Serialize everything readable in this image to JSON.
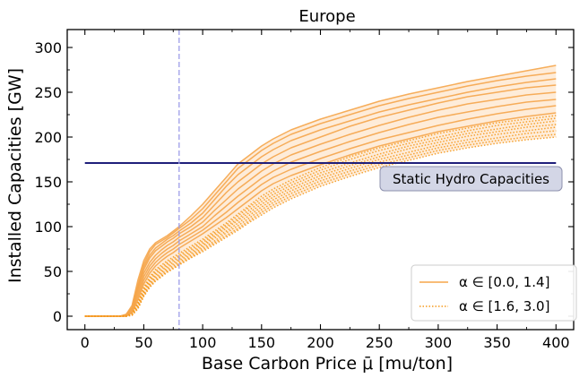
{
  "chart_data": {
    "type": "line",
    "title": "Europe",
    "xlabel": "Base Carbon Price μ̄ [mu/ton]",
    "ylabel": "Installed Capacities [GW]",
    "xlim": [
      -15,
      415
    ],
    "ylim": [
      -15,
      320
    ],
    "xticks": [
      0,
      50,
      100,
      150,
      200,
      250,
      300,
      350,
      400
    ],
    "yticks": [
      0,
      50,
      100,
      150,
      200,
      250,
      300
    ],
    "xtick_labels": [
      "0",
      "50",
      "100",
      "150",
      "200",
      "250",
      "300",
      "350",
      "400"
    ],
    "ytick_labels": [
      "0",
      "50",
      "100",
      "150",
      "200",
      "250",
      "300"
    ],
    "grid": false,
    "legend_position": "bottom-right",
    "colors": {
      "series": "#f5a54a",
      "dotted_series": "#f59a1e",
      "band_fill": "#fde6cc",
      "static_line": "#1f1f7a",
      "vline": "#9c9ce8",
      "annotation_bg": "#d3d6e6",
      "annotation_border": "#8d90ad"
    },
    "legend": [
      {
        "label": "α ∈ [0.0, 1.4]",
        "style": "solid"
      },
      {
        "label": "α ∈ [1.6, 3.0]",
        "style": "dotted"
      }
    ],
    "vertical_line": {
      "x": 80
    },
    "static_hydro": {
      "y": 171,
      "x_range": [
        0,
        400
      ],
      "label": "Static Hydro Capacities"
    },
    "x": [
      0,
      10,
      20,
      30,
      35,
      40,
      45,
      50,
      55,
      60,
      65,
      70,
      75,
      80,
      90,
      100,
      110,
      120,
      130,
      140,
      150,
      160,
      175,
      200,
      225,
      250,
      275,
      300,
      325,
      350,
      375,
      400
    ],
    "series_solid": [
      {
        "values": [
          0,
          0,
          0,
          0,
          2,
          12,
          40,
          62,
          75,
          82,
          86,
          90,
          95,
          100,
          112,
          125,
          140,
          155,
          170,
          180,
          190,
          198,
          208,
          220,
          230,
          240,
          248,
          255,
          262,
          268,
          274,
          280
        ]
      },
      {
        "values": [
          0,
          0,
          0,
          0,
          2,
          10,
          35,
          58,
          72,
          80,
          84,
          88,
          93,
          98,
          108,
          120,
          135,
          150,
          165,
          175,
          185,
          193,
          203,
          215,
          225,
          235,
          243,
          250,
          257,
          263,
          268,
          272
        ]
      },
      {
        "values": [
          0,
          0,
          0,
          0,
          1,
          9,
          32,
          55,
          68,
          76,
          81,
          86,
          90,
          95,
          104,
          115,
          130,
          145,
          158,
          168,
          178,
          186,
          196,
          208,
          218,
          228,
          236,
          243,
          250,
          256,
          261,
          265
        ]
      },
      {
        "values": [
          0,
          0,
          0,
          0,
          1,
          8,
          30,
          52,
          65,
          73,
          78,
          83,
          87,
          92,
          100,
          110,
          124,
          138,
          150,
          160,
          170,
          178,
          188,
          200,
          212,
          222,
          230,
          238,
          245,
          250,
          255,
          258
        ]
      },
      {
        "values": [
          0,
          0,
          0,
          0,
          1,
          7,
          27,
          48,
          60,
          68,
          74,
          79,
          83,
          88,
          96,
          105,
          118,
          130,
          142,
          152,
          162,
          170,
          180,
          192,
          203,
          213,
          222,
          230,
          237,
          242,
          247,
          250
        ]
      },
      {
        "values": [
          0,
          0,
          0,
          0,
          1,
          6,
          24,
          44,
          56,
          64,
          70,
          75,
          79,
          84,
          92,
          100,
          112,
          123,
          134,
          144,
          154,
          162,
          172,
          184,
          195,
          205,
          214,
          222,
          228,
          234,
          239,
          242
        ]
      },
      {
        "values": [
          0,
          0,
          0,
          0,
          0,
          5,
          21,
          40,
          52,
          60,
          66,
          71,
          75,
          80,
          88,
          96,
          106,
          116,
          127,
          137,
          147,
          155,
          164,
          176,
          187,
          197,
          205,
          213,
          220,
          226,
          231,
          235
        ]
      },
      {
        "values": [
          0,
          0,
          0,
          0,
          0,
          4,
          18,
          36,
          48,
          56,
          62,
          67,
          71,
          76,
          84,
          92,
          101,
          110,
          120,
          130,
          140,
          148,
          157,
          169,
          180,
          190,
          198,
          206,
          212,
          218,
          223,
          227
        ]
      }
    ],
    "series_dotted": [
      {
        "values": [
          0,
          0,
          0,
          0,
          0,
          3,
          15,
          32,
          44,
          52,
          57,
          62,
          66,
          70,
          78,
          86,
          95,
          104,
          114,
          124,
          134,
          142,
          152,
          166,
          178,
          188,
          196,
          204,
          210,
          216,
          220,
          224
        ]
      },
      {
        "values": [
          0,
          0,
          0,
          0,
          0,
          3,
          14,
          30,
          42,
          50,
          55,
          60,
          64,
          68,
          76,
          84,
          93,
          102,
          112,
          122,
          131,
          139,
          149,
          163,
          175,
          185,
          193,
          200,
          207,
          213,
          217,
          221
        ]
      },
      {
        "values": [
          0,
          0,
          0,
          0,
          0,
          2,
          13,
          29,
          40,
          48,
          53,
          58,
          62,
          66,
          74,
          82,
          91,
          100,
          109,
          119,
          128,
          136,
          146,
          160,
          171,
          181,
          190,
          197,
          204,
          209,
          214,
          218
        ]
      },
      {
        "values": [
          0,
          0,
          0,
          0,
          0,
          2,
          12,
          27,
          38,
          46,
          51,
          56,
          60,
          64,
          72,
          80,
          89,
          98,
          107,
          116,
          125,
          133,
          143,
          157,
          168,
          178,
          187,
          194,
          201,
          206,
          211,
          214
        ]
      },
      {
        "values": [
          0,
          0,
          0,
          0,
          0,
          2,
          11,
          26,
          36,
          44,
          49,
          54,
          58,
          62,
          70,
          78,
          87,
          95,
          104,
          113,
          122,
          130,
          140,
          154,
          165,
          175,
          183,
          191,
          197,
          203,
          207,
          211
        ]
      },
      {
        "values": [
          0,
          0,
          0,
          0,
          0,
          2,
          10,
          24,
          35,
          42,
          47,
          52,
          56,
          60,
          68,
          76,
          84,
          93,
          101,
          110,
          119,
          127,
          137,
          151,
          162,
          172,
          180,
          188,
          194,
          199,
          204,
          207
        ]
      },
      {
        "values": [
          0,
          0,
          0,
          0,
          0,
          1,
          9,
          23,
          33,
          40,
          45,
          50,
          54,
          58,
          66,
          74,
          82,
          90,
          98,
          107,
          116,
          124,
          134,
          148,
          159,
          169,
          177,
          185,
          191,
          196,
          200,
          203
        ]
      },
      {
        "values": [
          0,
          0,
          0,
          0,
          0,
          1,
          8,
          22,
          32,
          39,
          44,
          49,
          53,
          57,
          65,
          72,
          80,
          88,
          96,
          105,
          113,
          121,
          131,
          145,
          156,
          166,
          174,
          182,
          188,
          193,
          197,
          200
        ]
      }
    ]
  }
}
